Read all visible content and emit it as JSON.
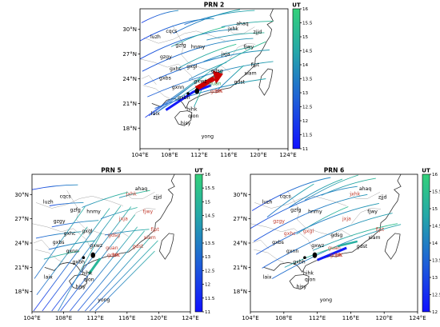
{
  "panels": [
    {
      "id": "prn2",
      "title": "PRN 2",
      "colorbar": {
        "label": "UT",
        "min": 11,
        "max": 16,
        "ticks": [
          "11",
          "11.5",
          "12",
          "12.5",
          "13",
          "13.5",
          "14",
          "14.5",
          "15",
          "15.5",
          "16"
        ]
      },
      "lat_labels": [
        "18°N",
        "21°N",
        "24°N",
        "27°N",
        "30°N"
      ],
      "lon_labels": [
        "104°E",
        "108°E",
        "112°E",
        "116°E",
        "120°E",
        "124°E"
      ],
      "stations": [
        {
          "name": "cqcs",
          "color": "#000000"
        },
        {
          "name": "ahaq",
          "color": "#000000"
        },
        {
          "name": "jxhk",
          "color": "#000000"
        },
        {
          "name": "zjjd",
          "color": "#000000"
        },
        {
          "name": "luzh",
          "color": "#000000"
        },
        {
          "name": "gzfg",
          "color": "#000000"
        },
        {
          "name": "hnmy",
          "color": "#000000"
        },
        {
          "name": "fjwy",
          "color": "#000000"
        },
        {
          "name": "gzgy",
          "color": "#000000"
        },
        {
          "name": "jxja",
          "color": "#000000"
        },
        {
          "name": "fjpt",
          "color": "#000000"
        },
        {
          "name": "gxhc",
          "color": "#000000"
        },
        {
          "name": "gxgl",
          "color": "#000000"
        },
        {
          "name": "gdsg",
          "color": "#000000"
        },
        {
          "name": "xiam",
          "color": "#000000"
        },
        {
          "name": "gxbs",
          "color": "#000000"
        },
        {
          "name": "gdst",
          "color": "#000000"
        },
        {
          "name": "gxwz",
          "color": "#000000"
        },
        {
          "name": "guan",
          "color": "#2a9d4b"
        },
        {
          "name": "gxnn",
          "color": "#000000"
        },
        {
          "name": "gdzh",
          "color": "#c0392b"
        },
        {
          "name": "HK",
          "color": "#c0392b"
        },
        {
          "name": "gxbh",
          "color": "#000000"
        },
        {
          "name": "hihk",
          "color": "#000000"
        },
        {
          "name": "qion",
          "color": "#000000"
        },
        {
          "name": "laix",
          "color": "#000000"
        },
        {
          "name": "hisy",
          "color": "#000000"
        },
        {
          "name": "yong",
          "color": "#000000"
        }
      ]
    },
    {
      "id": "prn5",
      "title": "PRN 5",
      "colorbar": {
        "label": "UT",
        "min": 11,
        "max": 16,
        "ticks": [
          "11",
          "11.5",
          "12",
          "12.5",
          "13",
          "13.5",
          "14",
          "14.5",
          "15",
          "15.5",
          "16"
        ]
      },
      "lat_labels": [
        "18°N",
        "21°N",
        "24°N",
        "27°N",
        "30°N"
      ],
      "lon_labels": [
        "104°E",
        "108°E",
        "112°E",
        "116°E",
        "120°E",
        "124°E"
      ],
      "stations": [
        {
          "name": "ahaq",
          "color": "#000000"
        },
        {
          "name": "cqcs",
          "color": "#000000"
        },
        {
          "name": "jxhk",
          "color": "#c0392b"
        },
        {
          "name": "zjjd",
          "color": "#000000"
        },
        {
          "name": "luzh",
          "color": "#000000"
        },
        {
          "name": "gzfg",
          "color": "#000000"
        },
        {
          "name": "hnmy",
          "color": "#000000"
        },
        {
          "name": "fjwy",
          "color": "#c0392b"
        },
        {
          "name": "gzgy",
          "color": "#000000"
        },
        {
          "name": "jxja",
          "color": "#c0392b"
        },
        {
          "name": "fjpt",
          "color": "#c0392b"
        },
        {
          "name": "gxhc",
          "color": "#000000"
        },
        {
          "name": "gxgl",
          "color": "#000000"
        },
        {
          "name": "gdsg",
          "color": "#c0392b"
        },
        {
          "name": "xiam",
          "color": "#c0392b"
        },
        {
          "name": "gxbs",
          "color": "#000000"
        },
        {
          "name": "gxwz",
          "color": "#000000"
        },
        {
          "name": "gdst",
          "color": "#c0392b"
        },
        {
          "name": "guan",
          "color": "#c0392b"
        },
        {
          "name": "gxnn",
          "color": "#000000"
        },
        {
          "name": "gdzh",
          "color": "#c0392b"
        },
        {
          "name": "HK",
          "color": "#c0392b"
        },
        {
          "name": "gxbh",
          "color": "#000000"
        },
        {
          "name": "hihk",
          "color": "#000000"
        },
        {
          "name": "qion",
          "color": "#000000"
        },
        {
          "name": "laix",
          "color": "#000000"
        },
        {
          "name": "hisy",
          "color": "#000000"
        },
        {
          "name": "yong",
          "color": "#000000"
        }
      ]
    },
    {
      "id": "prn6",
      "title": "PRN 6",
      "colorbar": {
        "label": "UT",
        "min": 12,
        "max": 16,
        "ticks": [
          "12",
          "12.5",
          "13",
          "13.5",
          "14",
          "14.5",
          "15",
          "15.5",
          "16"
        ]
      },
      "lat_labels": [
        "18°N",
        "21°N",
        "24°N",
        "27°N",
        "30°N"
      ],
      "lon_labels": [
        "104°E",
        "108°E",
        "112°E",
        "116°E",
        "120°E",
        "124°E"
      ],
      "stations": [
        {
          "name": "ahaq",
          "color": "#000000"
        },
        {
          "name": "cqcs",
          "color": "#000000"
        },
        {
          "name": "jxhk",
          "color": "#c0392b"
        },
        {
          "name": "zjjd",
          "color": "#000000"
        },
        {
          "name": "luzh",
          "color": "#000000"
        },
        {
          "name": "gzfg",
          "color": "#000000"
        },
        {
          "name": "hnmy",
          "color": "#000000"
        },
        {
          "name": "fjwy",
          "color": "#000000"
        },
        {
          "name": "gzgy",
          "color": "#c0392b"
        },
        {
          "name": "jxja",
          "color": "#c0392b"
        },
        {
          "name": "fjpt",
          "color": "#c0392b"
        },
        {
          "name": "gxgl",
          "color": "#c0392b"
        },
        {
          "name": "gxhc",
          "color": "#c0392b"
        },
        {
          "name": "gdsg",
          "color": "#000000"
        },
        {
          "name": "xiam",
          "color": "#000000"
        },
        {
          "name": "gxbs",
          "color": "#000000"
        },
        {
          "name": "gxwz",
          "color": "#000000"
        },
        {
          "name": "gdst",
          "color": "#000000"
        },
        {
          "name": "guan",
          "color": "#c0392b"
        },
        {
          "name": "gxnn",
          "color": "#000000"
        },
        {
          "name": "gdzh",
          "color": "#c0392b"
        },
        {
          "name": "HK",
          "color": "#c0392b"
        },
        {
          "name": "gxbh",
          "color": "#000000"
        },
        {
          "name": "hihk",
          "color": "#000000"
        },
        {
          "name": "laix",
          "color": "#000000"
        },
        {
          "name": "qion",
          "color": "#000000"
        },
        {
          "name": "hisy",
          "color": "#000000"
        },
        {
          "name": "yong",
          "color": "#000000"
        }
      ]
    }
  ],
  "colors": {
    "cmap_low": "#1a1aff",
    "cmap_high": "#33d17a",
    "arrow": "#cc0000",
    "label_red": "#c0392b",
    "label_green": "#2a9d4b"
  }
}
